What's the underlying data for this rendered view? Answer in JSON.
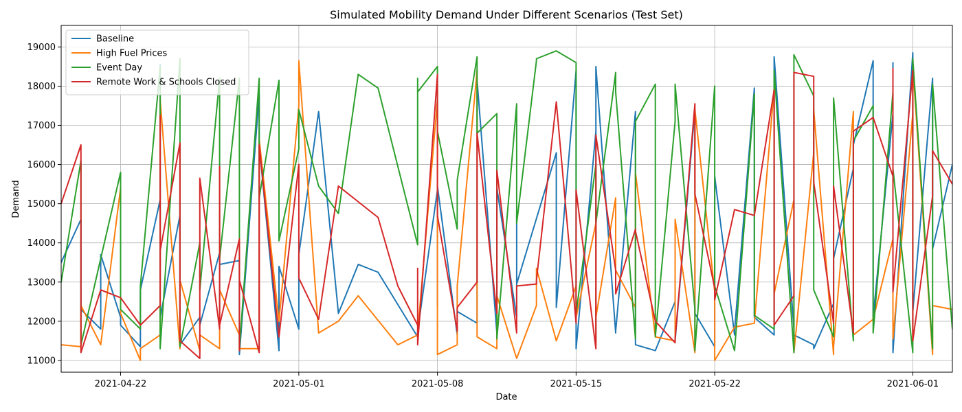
{
  "chart_data": {
    "type": "line",
    "title": "Simulated Mobility Demand Under Different Scenarios (Test Set)",
    "xlabel": "Date",
    "ylabel": "Demand",
    "x_type": "date",
    "xlim": [
      "2021-04-19",
      "2021-06-03"
    ],
    "ylim": [
      10700,
      19550
    ],
    "x_ticks": [
      "2021-04-22",
      "2021-05-01",
      "2021-05-08",
      "2021-05-15",
      "2021-05-22",
      "2021-06-01"
    ],
    "y_ticks": [
      11000,
      12000,
      13000,
      14000,
      15000,
      16000,
      17000,
      18000,
      19000
    ],
    "grid": true,
    "legend_position": "top-left",
    "series": [
      {
        "name": "Baseline",
        "color": "#1f77b4",
        "x": [
          "2021-04-19",
          "2021-04-20",
          "2021-04-20",
          "2021-04-21",
          "2021-04-21",
          "2021-04-22",
          "2021-04-22",
          "2021-04-23",
          "2021-04-23",
          "2021-04-24",
          "2021-04-24",
          "2021-04-24",
          "2021-04-25",
          "2021-04-25",
          "2021-04-25",
          "2021-04-26",
          "2021-04-26",
          "2021-04-27",
          "2021-04-27",
          "2021-04-27",
          "2021-04-28",
          "2021-04-28",
          "2021-04-29",
          "2021-04-29",
          "2021-04-29",
          "2021-04-29",
          "2021-04-30",
          "2021-04-30",
          "2021-05-01",
          "2021-05-01",
          "2021-05-02",
          "2021-05-03",
          "2021-05-04",
          "2021-05-05",
          "2021-05-07",
          "2021-05-07",
          "2021-05-07",
          "2021-05-08",
          "2021-05-08",
          "2021-05-08",
          "2021-05-09",
          "2021-05-09",
          "2021-05-10",
          "2021-05-10",
          "2021-05-10",
          "2021-05-11",
          "2021-05-11",
          "2021-05-11",
          "2021-05-12",
          "2021-05-12",
          "2021-05-12",
          "2021-05-12",
          "2021-05-14",
          "2021-05-14",
          "2021-05-15",
          "2021-05-15",
          "2021-05-15",
          "2021-05-16",
          "2021-05-16",
          "2021-05-16",
          "2021-05-17",
          "2021-05-17",
          "2021-05-18",
          "2021-05-18",
          "2021-05-18",
          "2021-05-19",
          "2021-05-20",
          "2021-05-20",
          "2021-05-21",
          "2021-05-21",
          "2021-05-22",
          "2021-05-22",
          "2021-05-23",
          "2021-05-23",
          "2021-05-24",
          "2021-05-24",
          "2021-05-25",
          "2021-05-25",
          "2021-05-26",
          "2021-05-26",
          "2021-05-27",
          "2021-05-27",
          "2021-05-28",
          "2021-05-28",
          "2021-05-29",
          "2021-05-29",
          "2021-05-30",
          "2021-05-30",
          "2021-05-31",
          "2021-05-31",
          "2021-05-31",
          "2021-06-01",
          "2021-06-01",
          "2021-06-01",
          "2021-06-02",
          "2021-06-02",
          "2021-06-03"
        ],
        "y": [
          13500,
          14600,
          12300,
          11800,
          13700,
          12100,
          11900,
          11350,
          12800,
          15100,
          18550,
          12100,
          14700,
          15100,
          11400,
          12100,
          11900,
          13750,
          12200,
          13450,
          13550,
          11150,
          17800,
          11700,
          11300,
          16500,
          11250,
          13400,
          11800,
          13700,
          17350,
          12200,
          13450,
          13250,
          11600,
          11700,
          11750,
          15350,
          12400,
          15450,
          11650,
          12250,
          11950,
          16500,
          18150,
          11700,
          13400,
          15400,
          12100,
          13100,
          14700,
          12950,
          16300,
          12350,
          18400,
          14600,
          11300,
          16850,
          11500,
          18500,
          11700,
          11750,
          17350,
          12700,
          11400,
          11250,
          12500,
          11500,
          17400,
          12200,
          11350,
          15700,
          11650,
          11750,
          17950,
          12100,
          11650,
          18750,
          11800,
          11650,
          11400,
          11300,
          12450,
          13600,
          15900,
          16500,
          18650,
          12100,
          17300,
          18600,
          11200,
          18850,
          15450,
          12250,
          18200,
          13850,
          16000
        ]
      },
      {
        "name": "High Fuel Prices",
        "color": "#ff7f0e",
        "x": [
          "2021-04-19",
          "2021-04-20",
          "2021-04-20",
          "2021-04-21",
          "2021-04-22",
          "2021-04-22",
          "2021-04-23",
          "2021-04-23",
          "2021-04-24",
          "2021-04-24",
          "2021-04-25",
          "2021-04-25",
          "2021-04-26",
          "2021-04-26",
          "2021-04-27",
          "2021-04-27",
          "2021-04-28",
          "2021-04-28",
          "2021-04-29",
          "2021-04-29",
          "2021-04-30",
          "2021-05-01",
          "2021-05-01",
          "2021-05-02",
          "2021-05-03",
          "2021-05-04",
          "2021-05-06",
          "2021-05-07",
          "2021-05-07",
          "2021-05-08",
          "2021-05-08",
          "2021-05-08",
          "2021-05-09",
          "2021-05-09",
          "2021-05-10",
          "2021-05-10",
          "2021-05-11",
          "2021-05-11",
          "2021-05-12",
          "2021-05-12",
          "2021-05-13",
          "2021-05-13",
          "2021-05-14",
          "2021-05-15",
          "2021-05-15",
          "2021-05-16",
          "2021-05-16",
          "2021-05-16",
          "2021-05-17",
          "2021-05-17",
          "2021-05-18",
          "2021-05-18",
          "2021-05-19",
          "2021-05-20",
          "2021-05-20",
          "2021-05-21",
          "2021-05-21",
          "2021-05-22",
          "2021-05-22",
          "2021-05-23",
          "2021-05-24",
          "2021-05-25",
          "2021-05-25",
          "2021-05-26",
          "2021-05-26",
          "2021-05-27",
          "2021-05-27",
          "2021-05-28",
          "2021-05-28",
          "2021-05-29",
          "2021-05-29",
          "2021-05-30",
          "2021-05-31",
          "2021-05-31",
          "2021-06-01",
          "2021-06-01",
          "2021-06-01",
          "2021-06-02",
          "2021-06-02",
          "2021-06-03"
        ],
        "y": [
          11400,
          11350,
          12400,
          11400,
          15400,
          12200,
          11000,
          11300,
          11650,
          17650,
          11300,
          13050,
          11250,
          11650,
          11300,
          12800,
          11650,
          11300,
          11300,
          16650,
          12000,
          17500,
          18650,
          11700,
          12000,
          12650,
          11400,
          11650,
          11700,
          17650,
          11700,
          11150,
          11400,
          12900,
          18400,
          11600,
          11300,
          12650,
          11050,
          11050,
          12400,
          13350,
          11500,
          12900,
          12100,
          14500,
          11400,
          12100,
          15150,
          13300,
          12350,
          15800,
          11600,
          11500,
          14600,
          11200,
          17400,
          12750,
          11000,
          11850,
          11950,
          17950,
          12700,
          15100,
          11200,
          16300,
          17400,
          11150,
          11350,
          17350,
          11650,
          12050,
          14100,
          11550,
          17300,
          11500,
          18500,
          11150,
          12400,
          12300
        ]
      },
      {
        "name": "Event Day",
        "color": "#2ca02c",
        "x": [
          "2021-04-19",
          "2021-04-20",
          "2021-04-20",
          "2021-04-21",
          "2021-04-22",
          "2021-04-22",
          "2021-04-23",
          "2021-04-23",
          "2021-04-24",
          "2021-04-24",
          "2021-04-25",
          "2021-04-25",
          "2021-04-25",
          "2021-04-26",
          "2021-04-26",
          "2021-04-27",
          "2021-04-27",
          "2021-04-28",
          "2021-04-28",
          "2021-04-29",
          "2021-04-29",
          "2021-04-30",
          "2021-04-30",
          "2021-05-01",
          "2021-05-01",
          "2021-05-02",
          "2021-05-03",
          "2021-05-04",
          "2021-05-05",
          "2021-05-07",
          "2021-05-07",
          "2021-05-07",
          "2021-05-08",
          "2021-05-08",
          "2021-05-08",
          "2021-05-09",
          "2021-05-09",
          "2021-05-10",
          "2021-05-10",
          "2021-05-11",
          "2021-05-11",
          "2021-05-12",
          "2021-05-12",
          "2021-05-13",
          "2021-05-13",
          "2021-05-14",
          "2021-05-15",
          "2021-05-15",
          "2021-05-16",
          "2021-05-16",
          "2021-05-17",
          "2021-05-17",
          "2021-05-18",
          "2021-05-18",
          "2021-05-19",
          "2021-05-19",
          "2021-05-20",
          "2021-05-20",
          "2021-05-21",
          "2021-05-21",
          "2021-05-22",
          "2021-05-22",
          "2021-05-23",
          "2021-05-24",
          "2021-05-24",
          "2021-05-25",
          "2021-05-25",
          "2021-05-26",
          "2021-05-26",
          "2021-05-27",
          "2021-05-27",
          "2021-05-28",
          "2021-05-28",
          "2021-05-29",
          "2021-05-29",
          "2021-05-30",
          "2021-05-30",
          "2021-05-31",
          "2021-05-31",
          "2021-06-01",
          "2021-06-01",
          "2021-06-02",
          "2021-06-02",
          "2021-06-03"
        ],
        "y": [
          13000,
          16100,
          11400,
          13600,
          15800,
          12300,
          11800,
          12900,
          18500,
          11300,
          18700,
          14700,
          11350,
          14000,
          12800,
          18200,
          13600,
          18200,
          11300,
          18200,
          15150,
          18150,
          14050,
          16400,
          17400,
          15450,
          14750,
          18300,
          17950,
          13950,
          18200,
          17850,
          18500,
          18400,
          16850,
          14350,
          15600,
          18750,
          16800,
          17300,
          11550,
          17550,
          14500,
          18650,
          18700,
          18900,
          18600,
          12200,
          16000,
          14500,
          18350,
          17850,
          11550,
          17100,
          18050,
          11600,
          17100,
          18050,
          12300,
          11250,
          18000,
          12900,
          11250,
          17800,
          12150,
          11800,
          18400,
          11200,
          18800,
          17750,
          12800,
          11600,
          17700,
          11500,
          16600,
          17500,
          11700,
          17850,
          15900,
          11200,
          18700,
          11300,
          18050,
          11800
        ]
      },
      {
        "name": "Remote Work & Schools Closed",
        "color": "#d62728",
        "x": [
          "2021-04-19",
          "2021-04-20",
          "2021-04-20",
          "2021-04-21",
          "2021-04-22",
          "2021-04-23",
          "2021-04-24",
          "2021-04-24",
          "2021-04-24",
          "2021-04-25",
          "2021-04-25",
          "2021-04-26",
          "2021-04-26",
          "2021-04-27",
          "2021-04-27",
          "2021-04-27",
          "2021-04-28",
          "2021-04-28",
          "2021-04-28",
          "2021-04-29",
          "2021-04-29",
          "2021-04-30",
          "2021-05-01",
          "2021-05-01",
          "2021-05-02",
          "2021-05-03",
          "2021-05-05",
          "2021-05-06",
          "2021-05-07",
          "2021-05-07",
          "2021-05-07",
          "2021-05-08",
          "2021-05-08",
          "2021-05-09",
          "2021-05-09",
          "2021-05-10",
          "2021-05-10",
          "2021-05-11",
          "2021-05-11",
          "2021-05-12",
          "2021-05-12",
          "2021-05-13",
          "2021-05-13",
          "2021-05-14",
          "2021-05-15",
          "2021-05-15",
          "2021-05-16",
          "2021-05-16",
          "2021-05-16",
          "2021-05-17",
          "2021-05-17",
          "2021-05-18",
          "2021-05-18",
          "2021-05-19",
          "2021-05-20",
          "2021-05-20",
          "2021-05-21",
          "2021-05-21",
          "2021-05-22",
          "2021-05-22",
          "2021-05-23",
          "2021-05-24",
          "2021-05-25",
          "2021-05-25",
          "2021-05-26",
          "2021-05-26",
          "2021-05-27",
          "2021-05-27",
          "2021-05-28",
          "2021-05-28",
          "2021-05-29",
          "2021-05-29",
          "2021-05-30",
          "2021-05-31",
          "2021-05-31",
          "2021-05-31",
          "2021-06-01",
          "2021-06-01",
          "2021-06-02",
          "2021-06-02",
          "2021-06-03"
        ],
        "y": [
          15000,
          16500,
          11200,
          12800,
          12600,
          11900,
          12400,
          17250,
          13800,
          16550,
          11500,
          11050,
          15650,
          11800,
          15950,
          11900,
          14100,
          11250,
          13050,
          11200,
          16500,
          11600,
          16000,
          13100,
          12050,
          15450,
          14650,
          12900,
          11900,
          13350,
          11400,
          18300,
          14700,
          11750,
          12350,
          13000,
          16800,
          12200,
          15850,
          11700,
          12900,
          12950,
          13050,
          17600,
          11950,
          15350,
          11300,
          13150,
          16750,
          13300,
          12700,
          14350,
          14300,
          12000,
          11450,
          11550,
          17550,
          15250,
          12850,
          12550,
          14850,
          14700,
          17900,
          11900,
          12650,
          18350,
          18250,
          15550,
          11950,
          15450,
          11700,
          16850,
          17200,
          15700,
          18450,
          12750,
          18400,
          11500,
          15200,
          16350,
          15500
        ]
      }
    ]
  }
}
